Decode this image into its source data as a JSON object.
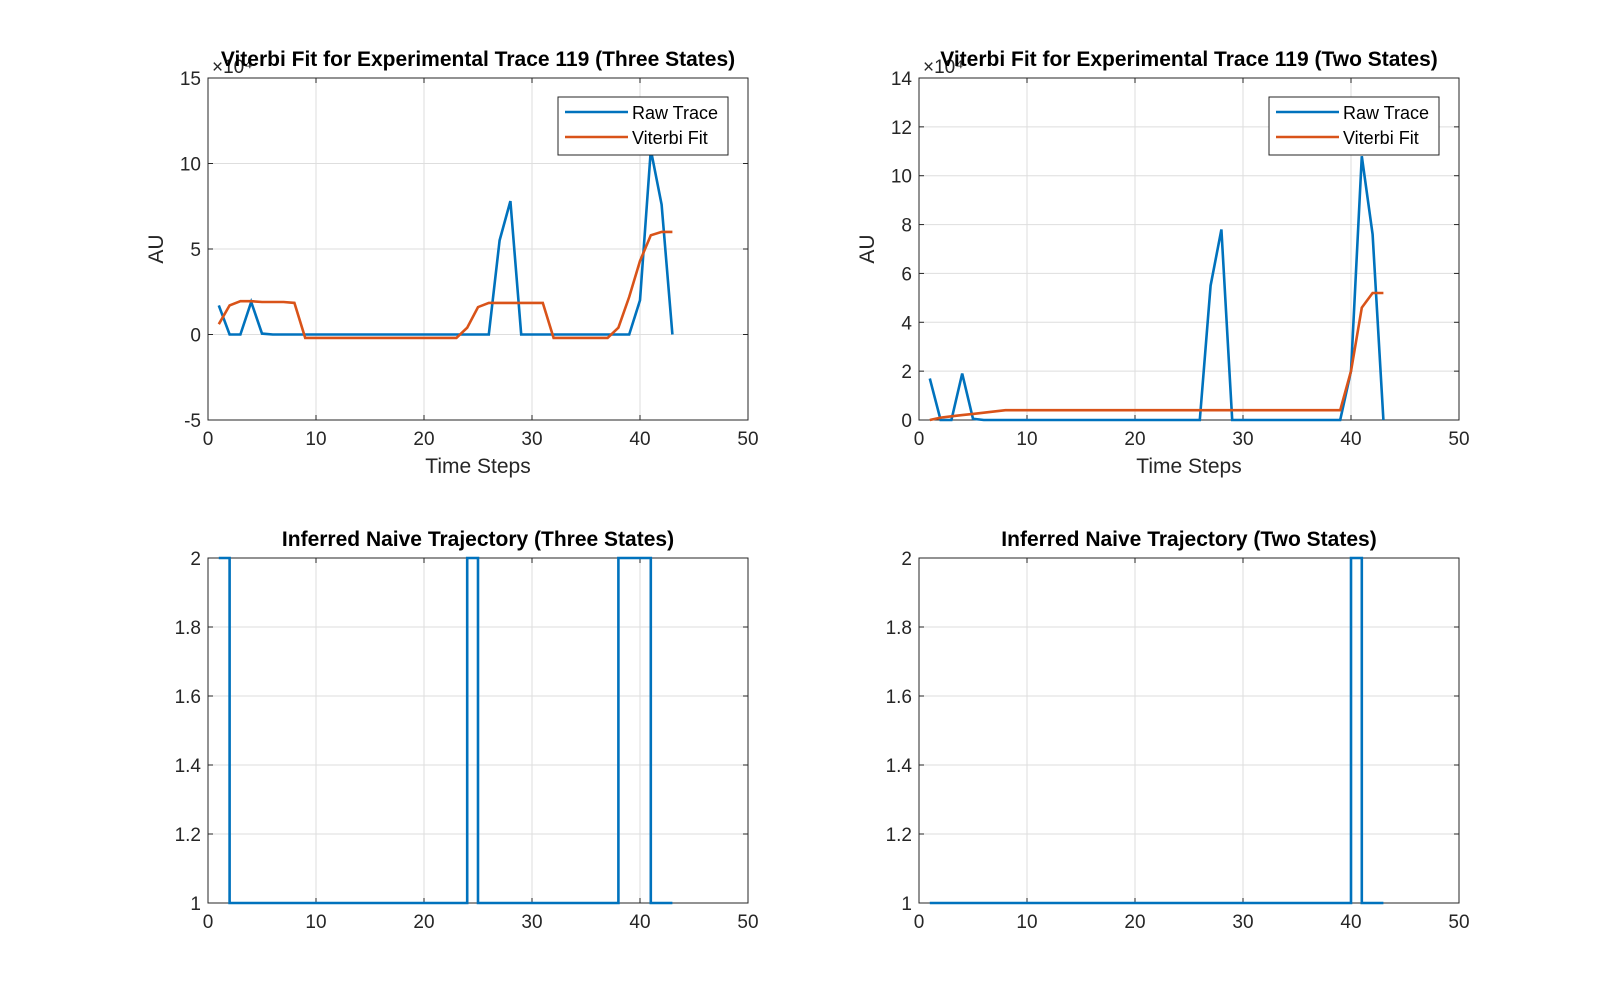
{
  "chart_data": [
    {
      "type": "line",
      "title": "Viterbi Fit for Experimental Trace 119 (Three States)",
      "xlabel": "Time Steps",
      "ylabel": "AU",
      "exponent_label": "×10⁴",
      "xlim": [
        0,
        50
      ],
      "ylim": [
        -5,
        15
      ],
      "xticks": [
        0,
        10,
        20,
        30,
        40,
        50
      ],
      "yticks": [
        -5,
        0,
        5,
        10,
        15
      ],
      "grid": true,
      "legend_position": "top-right",
      "series": [
        {
          "name": "Raw Trace",
          "color": "#0072BD",
          "x": [
            1,
            2,
            3,
            4,
            5,
            6,
            7,
            8,
            9,
            10,
            11,
            12,
            13,
            14,
            15,
            16,
            17,
            18,
            19,
            20,
            21,
            22,
            23,
            24,
            25,
            26,
            27,
            28,
            29,
            30,
            31,
            32,
            33,
            34,
            35,
            36,
            37,
            38,
            39,
            40,
            41,
            42,
            43
          ],
          "y": [
            1.7,
            0,
            0,
            1.9,
            0.05,
            0,
            0,
            0,
            0,
            0,
            0,
            0,
            0,
            0,
            0,
            0,
            0,
            0,
            0,
            0,
            0,
            0,
            0,
            0,
            0,
            0,
            5.5,
            7.8,
            0,
            0,
            0,
            0,
            0,
            0,
            0,
            0,
            0,
            0,
            0,
            2,
            10.8,
            7.6,
            0
          ]
        },
        {
          "name": "Viterbi Fit",
          "color": "#D95319",
          "x": [
            1,
            2,
            3,
            4,
            5,
            6,
            7,
            8,
            9,
            10,
            11,
            12,
            13,
            14,
            15,
            16,
            17,
            18,
            19,
            20,
            21,
            22,
            23,
            24,
            25,
            26,
            27,
            28,
            29,
            30,
            31,
            32,
            33,
            34,
            35,
            36,
            37,
            38,
            39,
            40,
            41,
            42,
            43
          ],
          "y": [
            0.6,
            1.7,
            1.95,
            1.95,
            1.9,
            1.9,
            1.9,
            1.85,
            -0.2,
            -0.2,
            -0.2,
            -0.2,
            -0.2,
            -0.2,
            -0.2,
            -0.2,
            -0.2,
            -0.2,
            -0.2,
            -0.2,
            -0.2,
            -0.2,
            -0.2,
            0.4,
            1.6,
            1.85,
            1.85,
            1.85,
            1.85,
            1.85,
            1.85,
            -0.2,
            -0.2,
            -0.2,
            -0.2,
            -0.2,
            -0.2,
            0.4,
            2.2,
            4.3,
            5.8,
            6.0,
            6.0
          ]
        }
      ]
    },
    {
      "type": "line",
      "title": "Viterbi Fit for Experimental Trace  119 (Two States)",
      "xlabel": "Time Steps",
      "ylabel": "AU",
      "exponent_label": "×10⁴",
      "xlim": [
        0,
        50
      ],
      "ylim": [
        0,
        14
      ],
      "xticks": [
        0,
        10,
        20,
        30,
        40,
        50
      ],
      "yticks": [
        0,
        2,
        4,
        6,
        8,
        10,
        12,
        14
      ],
      "grid": true,
      "legend_position": "top-right",
      "series": [
        {
          "name": "Raw Trace",
          "color": "#0072BD",
          "x": [
            1,
            2,
            3,
            4,
            5,
            6,
            7,
            8,
            9,
            10,
            11,
            12,
            13,
            14,
            15,
            16,
            17,
            18,
            19,
            20,
            21,
            22,
            23,
            24,
            25,
            26,
            27,
            28,
            29,
            30,
            31,
            32,
            33,
            34,
            35,
            36,
            37,
            38,
            39,
            40,
            41,
            42,
            43
          ],
          "y": [
            1.7,
            0,
            0,
            1.9,
            0.05,
            0,
            0,
            0,
            0,
            0,
            0,
            0,
            0,
            0,
            0,
            0,
            0,
            0,
            0,
            0,
            0,
            0,
            0,
            0,
            0,
            0,
            5.5,
            7.8,
            0,
            0,
            0,
            0,
            0,
            0,
            0,
            0,
            0,
            0,
            0,
            2,
            10.8,
            7.6,
            0
          ]
        },
        {
          "name": "Viterbi Fit",
          "color": "#D95319",
          "x": [
            1,
            2,
            3,
            4,
            5,
            6,
            7,
            8,
            9,
            10,
            11,
            12,
            13,
            14,
            15,
            16,
            17,
            18,
            19,
            20,
            21,
            22,
            23,
            24,
            25,
            26,
            27,
            28,
            29,
            30,
            31,
            32,
            33,
            34,
            35,
            36,
            37,
            38,
            39,
            40,
            41,
            42,
            43
          ],
          "y": [
            0,
            0.1,
            0.15,
            0.2,
            0.25,
            0.3,
            0.35,
            0.4,
            0.4,
            0.4,
            0.4,
            0.4,
            0.4,
            0.4,
            0.4,
            0.4,
            0.4,
            0.4,
            0.4,
            0.4,
            0.4,
            0.4,
            0.4,
            0.4,
            0.4,
            0.4,
            0.4,
            0.4,
            0.4,
            0.4,
            0.4,
            0.4,
            0.4,
            0.4,
            0.4,
            0.4,
            0.4,
            0.4,
            0.4,
            2.0,
            4.6,
            5.2,
            5.2
          ]
        }
      ]
    },
    {
      "type": "line",
      "title": "Inferred Naive Trajectory (Three States)",
      "xlabel": "",
      "ylabel": "",
      "xlim": [
        0,
        50
      ],
      "ylim": [
        1,
        2
      ],
      "xticks": [
        0,
        10,
        20,
        30,
        40,
        50
      ],
      "yticks": [
        1,
        1.2,
        1.4,
        1.6,
        1.8,
        2
      ],
      "ytick_labels": [
        "1",
        "1.2",
        "1.4",
        "1.6",
        "1.8",
        "2"
      ],
      "grid": true,
      "series": [
        {
          "name": "",
          "color": "#0072BD",
          "x": [
            1,
            2,
            2,
            24,
            24,
            25,
            25,
            38,
            38,
            41,
            41,
            43
          ],
          "y": [
            2,
            2,
            1,
            1,
            2,
            2,
            1,
            1,
            2,
            2,
            1,
            1
          ]
        }
      ]
    },
    {
      "type": "line",
      "title": "Inferred Naive Trajectory (Two States)",
      "xlabel": "",
      "ylabel": "",
      "xlim": [
        0,
        50
      ],
      "ylim": [
        1,
        2
      ],
      "xticks": [
        0,
        10,
        20,
        30,
        40,
        50
      ],
      "yticks": [
        1,
        1.2,
        1.4,
        1.6,
        1.8,
        2
      ],
      "ytick_labels": [
        "1",
        "1.2",
        "1.4",
        "1.6",
        "1.8",
        "2"
      ],
      "grid": true,
      "series": [
        {
          "name": "",
          "color": "#0072BD",
          "x": [
            1,
            40,
            40,
            41,
            41,
            43
          ],
          "y": [
            1,
            1,
            2,
            2,
            1,
            1
          ]
        }
      ]
    }
  ]
}
